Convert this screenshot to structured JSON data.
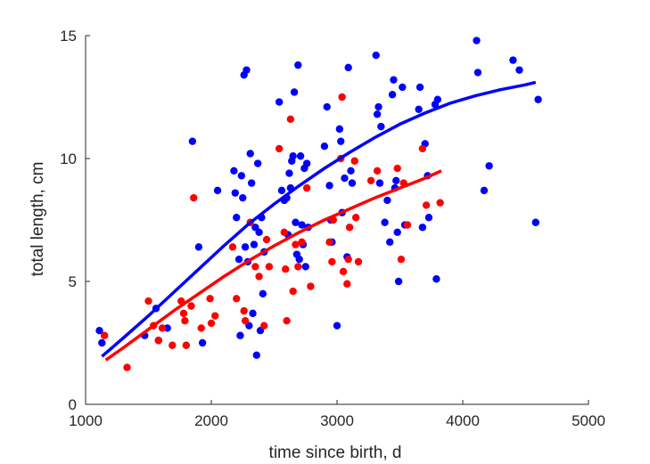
{
  "chart_data": {
    "type": "scatter",
    "title": "",
    "xlabel": "time since birth, d",
    "ylabel": "total length, cm",
    "xlim": [
      1000,
      5000
    ],
    "ylim": [
      0,
      15
    ],
    "xticks": [
      "1000",
      "2000",
      "3000",
      "4000",
      "5000"
    ],
    "yticks": [
      "0",
      "5",
      "10",
      "15"
    ],
    "grid": false,
    "legend": "none",
    "colors": {
      "blue": "#0000ff",
      "red": "#ff0000",
      "axis": "#262626"
    },
    "series": [
      {
        "color": "#0000ff",
        "points": [
          [
            1110,
            3.0
          ],
          [
            1130,
            2.5
          ],
          [
            1470,
            2.8
          ],
          [
            1560,
            3.9
          ],
          [
            1580,
            2.6
          ],
          [
            1650,
            3.1
          ],
          [
            1850,
            10.7
          ],
          [
            1900,
            6.4
          ],
          [
            1930,
            2.5
          ],
          [
            2050,
            8.7
          ],
          [
            2180,
            9.5
          ],
          [
            2190,
            8.6
          ],
          [
            2200,
            7.6
          ],
          [
            2220,
            5.9
          ],
          [
            2230,
            2.8
          ],
          [
            2240,
            9.3
          ],
          [
            2250,
            8.4
          ],
          [
            2260,
            13.4
          ],
          [
            2270,
            6.4
          ],
          [
            2280,
            13.6
          ],
          [
            2290,
            5.8
          ],
          [
            2300,
            3.2
          ],
          [
            2310,
            10.2
          ],
          [
            2320,
            9.0
          ],
          [
            2330,
            3.7
          ],
          [
            2340,
            6.5
          ],
          [
            2350,
            7.2
          ],
          [
            2360,
            2.0
          ],
          [
            2370,
            9.8
          ],
          [
            2380,
            7.0
          ],
          [
            2390,
            3.0
          ],
          [
            2400,
            7.6
          ],
          [
            2410,
            4.5
          ],
          [
            2420,
            6.2
          ],
          [
            2540,
            12.3
          ],
          [
            2560,
            8.7
          ],
          [
            2580,
            8.3
          ],
          [
            2600,
            8.4
          ],
          [
            2610,
            6.9
          ],
          [
            2620,
            9.4
          ],
          [
            2630,
            8.8
          ],
          [
            2640,
            9.9
          ],
          [
            2650,
            10.1
          ],
          [
            2660,
            12.7
          ],
          [
            2670,
            7.4
          ],
          [
            2680,
            6.1
          ],
          [
            2690,
            13.8
          ],
          [
            2700,
            5.9
          ],
          [
            2710,
            10.1
          ],
          [
            2720,
            7.3
          ],
          [
            2730,
            6.5
          ],
          [
            2740,
            9.6
          ],
          [
            2750,
            5.6
          ],
          [
            2760,
            9.8
          ],
          [
            2770,
            7.2
          ],
          [
            2900,
            10.5
          ],
          [
            2920,
            12.1
          ],
          [
            2940,
            8.9
          ],
          [
            2950,
            7.5
          ],
          [
            2960,
            6.6
          ],
          [
            3000,
            3.2
          ],
          [
            3020,
            11.2
          ],
          [
            3030,
            10.7
          ],
          [
            3040,
            7.8
          ],
          [
            3060,
            9.2
          ],
          [
            3080,
            6.0
          ],
          [
            3090,
            13.7
          ],
          [
            3110,
            9.5
          ],
          [
            3120,
            9.0
          ],
          [
            3310,
            14.2
          ],
          [
            3320,
            11.8
          ],
          [
            3330,
            12.1
          ],
          [
            3340,
            9.0
          ],
          [
            3350,
            11.3
          ],
          [
            3380,
            7.4
          ],
          [
            3400,
            8.3
          ],
          [
            3420,
            6.6
          ],
          [
            3440,
            12.6
          ],
          [
            3450,
            13.2
          ],
          [
            3460,
            8.8
          ],
          [
            3470,
            9.1
          ],
          [
            3480,
            7.0
          ],
          [
            3490,
            5.0
          ],
          [
            3520,
            12.9
          ],
          [
            3540,
            7.3
          ],
          [
            3650,
            12.0
          ],
          [
            3660,
            12.9
          ],
          [
            3680,
            7.2
          ],
          [
            3700,
            10.6
          ],
          [
            3720,
            9.3
          ],
          [
            3730,
            7.6
          ],
          [
            3780,
            12.2
          ],
          [
            3790,
            5.1
          ],
          [
            3800,
            12.4
          ],
          [
            4110,
            14.8
          ],
          [
            4120,
            13.5
          ],
          [
            4170,
            8.7
          ],
          [
            4210,
            9.7
          ],
          [
            4400,
            14.0
          ],
          [
            4450,
            13.6
          ],
          [
            4580,
            7.4
          ],
          [
            4600,
            12.4
          ]
        ]
      },
      {
        "color": "#ff0000",
        "points": [
          [
            1150,
            2.8
          ],
          [
            1330,
            1.5
          ],
          [
            1500,
            4.2
          ],
          [
            1540,
            3.2
          ],
          [
            1580,
            2.6
          ],
          [
            1610,
            3.1
          ],
          [
            1690,
            2.4
          ],
          [
            1760,
            4.2
          ],
          [
            1780,
            3.7
          ],
          [
            1790,
            3.4
          ],
          [
            1800,
            2.4
          ],
          [
            1840,
            4.0
          ],
          [
            1860,
            8.4
          ],
          [
            1920,
            3.1
          ],
          [
            1990,
            4.3
          ],
          [
            2000,
            3.3
          ],
          [
            2030,
            3.6
          ],
          [
            2170,
            6.4
          ],
          [
            2200,
            4.3
          ],
          [
            2260,
            3.8
          ],
          [
            2270,
            3.4
          ],
          [
            2310,
            7.4
          ],
          [
            2350,
            5.6
          ],
          [
            2380,
            5.2
          ],
          [
            2420,
            3.2
          ],
          [
            2440,
            6.7
          ],
          [
            2460,
            5.6
          ],
          [
            2540,
            10.4
          ],
          [
            2580,
            7.0
          ],
          [
            2590,
            5.5
          ],
          [
            2600,
            3.4
          ],
          [
            2630,
            11.6
          ],
          [
            2650,
            4.6
          ],
          [
            2670,
            6.5
          ],
          [
            2690,
            5.6
          ],
          [
            2720,
            6.6
          ],
          [
            2760,
            8.8
          ],
          [
            2790,
            4.8
          ],
          [
            2940,
            6.6
          ],
          [
            2960,
            5.8
          ],
          [
            2970,
            7.5
          ],
          [
            3030,
            10.0
          ],
          [
            3040,
            12.5
          ],
          [
            3050,
            5.4
          ],
          [
            3080,
            4.9
          ],
          [
            3090,
            5.9
          ],
          [
            3100,
            7.2
          ],
          [
            3140,
            9.9
          ],
          [
            3150,
            7.6
          ],
          [
            3170,
            5.8
          ],
          [
            3270,
            9.1
          ],
          [
            3320,
            9.5
          ],
          [
            3480,
            9.6
          ],
          [
            3510,
            5.9
          ],
          [
            3530,
            9.0
          ],
          [
            3560,
            7.3
          ],
          [
            3680,
            10.4
          ],
          [
            3710,
            8.1
          ],
          [
            3820,
            8.2
          ]
        ]
      }
    ],
    "fits": [
      {
        "color": "#0000ff",
        "x": [
          1130,
          1300,
          1500,
          1700,
          1900,
          2100,
          2300,
          2500,
          2700,
          2900,
          3100,
          3300,
          3500,
          3700,
          3900,
          4100,
          4300,
          4500,
          4580
        ],
        "y": [
          1.95,
          2.7,
          3.6,
          4.55,
          5.5,
          6.45,
          7.35,
          8.15,
          8.9,
          9.6,
          10.25,
          10.85,
          11.4,
          11.85,
          12.25,
          12.55,
          12.8,
          13.0,
          13.1
        ]
      },
      {
        "color": "#ff0000",
        "x": [
          1160,
          1300,
          1500,
          1700,
          1900,
          2100,
          2300,
          2500,
          2700,
          2900,
          3100,
          3300,
          3500,
          3700,
          3830
        ],
        "y": [
          1.8,
          2.3,
          3.05,
          3.8,
          4.5,
          5.2,
          5.85,
          6.45,
          7.0,
          7.5,
          7.95,
          8.4,
          8.8,
          9.2,
          9.5
        ]
      }
    ]
  }
}
